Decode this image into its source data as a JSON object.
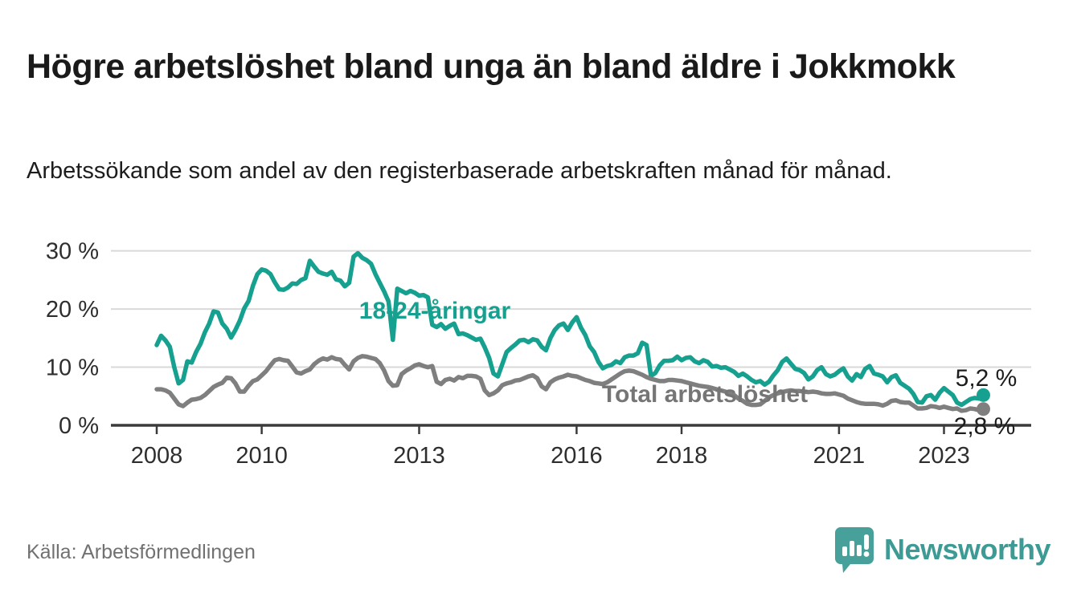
{
  "header": {
    "title": "Högre arbetslöshet bland unga än bland äldre i Jokkmokk",
    "subtitle": "Arbetssökande som andel av den registerbaserade arbetskraften månad för månad."
  },
  "source": {
    "label": "Källa: Arbetsförmedlingen"
  },
  "branding": {
    "name": "Newsworthy",
    "icon": "newsworthy-speech-bubble-chart",
    "color": "#3d9a94",
    "icon_color": "#47a09a"
  },
  "chart_data": {
    "type": "line",
    "title": "Högre arbetslöshet bland unga än bland äldre i Jokkmokk",
    "subtitle": "Arbetssökande som andel av den registerbaserade arbetskraften månad för månad.",
    "unit": "%",
    "grid": "horizontal",
    "legend_position": "inline-labels",
    "x_axis": {
      "frequency": "monthly",
      "start": "2008-01",
      "end": "2023-10",
      "ticks": [
        {
          "year": 2008,
          "label": "2008"
        },
        {
          "year": 2010,
          "label": "2010"
        },
        {
          "year": 2013,
          "label": "2013"
        },
        {
          "year": 2016,
          "label": "2016"
        },
        {
          "year": 2018,
          "label": "2018"
        },
        {
          "year": 2021,
          "label": "2021"
        },
        {
          "year": 2023,
          "label": "2023"
        }
      ]
    },
    "y_axis": {
      "min": 0,
      "max": 30,
      "ticks": [
        {
          "value": 0,
          "label": "0 %"
        },
        {
          "value": 10,
          "label": "10 %"
        },
        {
          "value": 20,
          "label": "20 %"
        },
        {
          "value": 30,
          "label": "30 %"
        }
      ]
    },
    "series": [
      {
        "name": "18-24-åringar",
        "color": "#16a08f",
        "label_color": "#16a08f",
        "end_label": "5,2 %",
        "last_value": 5.2,
        "values": [
          13.8,
          15.4,
          14.6,
          13.5,
          10.0,
          7.2,
          7.8,
          11.0,
          10.8,
          12.6,
          14.0,
          16.0,
          17.5,
          19.6,
          19.4,
          17.5,
          16.6,
          15.1,
          16.4,
          18.0,
          20.1,
          21.4,
          24.0,
          26.0,
          26.8,
          26.6,
          26.0,
          24.6,
          23.4,
          23.3,
          23.7,
          24.4,
          24.3,
          25.0,
          25.3,
          28.3,
          27.3,
          26.4,
          26.1,
          25.9,
          26.4,
          25.1,
          24.9,
          23.9,
          24.5,
          29.0,
          29.6,
          28.8,
          28.4,
          27.8,
          26.0,
          24.5,
          23.0,
          21.3,
          14.7,
          23.5,
          23.1,
          22.7,
          23.1,
          22.8,
          22.3,
          22.4,
          22.0,
          17.3,
          16.9,
          17.4,
          16.6,
          17.1,
          17.5,
          15.7,
          15.8,
          15.5,
          15.1,
          14.7,
          14.9,
          13.4,
          11.6,
          8.9,
          8.4,
          10.5,
          12.6,
          13.3,
          13.9,
          14.6,
          14.7,
          14.3,
          14.8,
          14.6,
          13.5,
          12.9,
          15.0,
          16.4,
          17.2,
          17.5,
          16.4,
          17.7,
          18.6,
          16.8,
          15.5,
          13.6,
          12.6,
          10.9,
          9.8,
          10.2,
          10.4,
          11.0,
          10.7,
          11.7,
          12.0,
          12.0,
          12.4,
          14.2,
          13.8,
          8.5,
          9.0,
          10.3,
          11.1,
          11.1,
          11.2,
          11.8,
          11.2,
          11.6,
          11.7,
          11.0,
          10.7,
          11.2,
          10.9,
          10.1,
          10.2,
          9.9,
          10.0,
          9.6,
          9.2,
          8.5,
          8.9,
          8.4,
          7.8,
          7.4,
          7.6,
          7.0,
          7.5,
          8.6,
          9.5,
          10.9,
          11.5,
          10.6,
          9.7,
          9.5,
          9.0,
          7.9,
          8.4,
          9.5,
          10.0,
          8.8,
          8.4,
          8.7,
          9.3,
          9.8,
          8.4,
          7.7,
          8.8,
          8.3,
          9.7,
          10.2,
          8.9,
          8.7,
          8.4,
          7.4,
          8.3,
          8.6,
          7.3,
          6.8,
          6.3,
          5.4,
          4.0,
          3.9,
          5.0,
          5.2,
          4.4,
          5.6,
          6.4,
          5.8,
          5.2,
          3.9,
          3.5,
          4.0,
          4.5,
          4.7,
          4.6,
          5.2
        ]
      },
      {
        "name": "Total arbetslöshet",
        "color": "#7f7f7f",
        "label_color": "#757575",
        "end_label": "2,8 %",
        "last_value": 2.8,
        "values": [
          6.2,
          6.2,
          6.0,
          5.6,
          4.6,
          3.6,
          3.3,
          3.9,
          4.4,
          4.5,
          4.7,
          5.2,
          5.9,
          6.6,
          7.0,
          7.3,
          8.2,
          8.1,
          7.2,
          5.8,
          5.8,
          6.8,
          7.6,
          7.9,
          8.6,
          9.3,
          10.3,
          11.2,
          11.4,
          11.2,
          11.1,
          10.1,
          9.1,
          8.9,
          9.3,
          9.6,
          10.5,
          11.1,
          11.5,
          11.3,
          11.7,
          11.4,
          11.3,
          10.4,
          9.6,
          11.0,
          11.6,
          11.9,
          11.8,
          11.6,
          11.4,
          10.7,
          9.4,
          7.6,
          6.8,
          6.9,
          8.8,
          9.4,
          9.8,
          10.3,
          10.5,
          10.2,
          10.0,
          10.2,
          7.5,
          7.1,
          7.8,
          8.0,
          7.7,
          8.3,
          8.1,
          8.5,
          8.5,
          8.4,
          8.0,
          6.0,
          5.2,
          5.5,
          6.0,
          6.9,
          7.2,
          7.4,
          7.7,
          7.8,
          8.1,
          8.4,
          8.6,
          8.1,
          6.7,
          6.2,
          7.4,
          7.9,
          8.2,
          8.4,
          8.7,
          8.5,
          8.4,
          8.1,
          7.8,
          7.6,
          7.3,
          7.2,
          7.1,
          7.4,
          7.9,
          8.4,
          8.9,
          9.3,
          9.4,
          9.3,
          9.0,
          8.7,
          8.3,
          8.0,
          7.8,
          7.6,
          7.6,
          7.8,
          7.8,
          7.7,
          7.6,
          7.4,
          7.2,
          7.0,
          6.8,
          6.7,
          6.6,
          6.4,
          6.2,
          6.0,
          5.8,
          5.5,
          5.2,
          4.6,
          4.2,
          3.7,
          3.5,
          3.5,
          3.6,
          4.2,
          4.8,
          5.2,
          5.5,
          5.7,
          5.9,
          6.0,
          5.9,
          5.9,
          5.8,
          5.7,
          5.8,
          5.7,
          5.5,
          5.4,
          5.4,
          5.5,
          5.3,
          5.1,
          4.6,
          4.3,
          4.0,
          3.8,
          3.7,
          3.7,
          3.7,
          3.6,
          3.4,
          3.7,
          4.2,
          4.3,
          4.0,
          3.9,
          3.9,
          3.4,
          2.9,
          2.9,
          3.0,
          3.3,
          3.2,
          3.0,
          3.2,
          3.0,
          2.8,
          2.9,
          2.5,
          2.6,
          2.9,
          2.8,
          2.6,
          2.8
        ]
      }
    ]
  }
}
